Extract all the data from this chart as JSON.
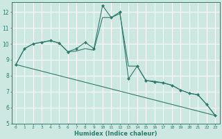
{
  "xlabel": "Humidex (Indice chaleur)",
  "background_color": "#cce8e0",
  "grid_color": "#ffffff",
  "line_color": "#2d7a6e",
  "ylim": [
    5,
    12.6
  ],
  "xlim": [
    -0.5,
    23.5
  ],
  "yticks": [
    5,
    6,
    7,
    8,
    9,
    10,
    11,
    12
  ],
  "xticks": [
    0,
    1,
    2,
    3,
    4,
    5,
    6,
    7,
    8,
    9,
    10,
    11,
    12,
    13,
    14,
    15,
    16,
    17,
    18,
    19,
    20,
    21,
    22,
    23
  ],
  "series1_x": [
    0,
    1,
    2,
    3,
    4,
    5,
    6,
    7,
    8,
    9,
    10,
    11,
    12,
    13,
    14,
    15,
    16,
    17,
    18,
    19,
    20,
    21,
    22,
    23
  ],
  "series1_y": [
    8.7,
    9.7,
    10.0,
    10.1,
    10.2,
    10.05,
    9.5,
    9.7,
    10.1,
    9.7,
    12.4,
    11.65,
    12.0,
    7.8,
    8.6,
    7.7,
    7.6,
    7.55,
    7.4,
    7.1,
    6.9,
    6.8,
    6.2,
    5.5
  ],
  "series2_x": [
    0,
    1,
    2,
    3,
    4,
    5,
    6,
    7,
    8,
    9,
    10,
    11,
    12,
    13,
    14,
    15,
    16,
    17,
    18,
    19,
    20,
    21,
    22,
    23
  ],
  "series2_y": [
    8.7,
    9.7,
    10.0,
    10.1,
    10.2,
    10.05,
    9.5,
    9.55,
    9.7,
    9.6,
    11.65,
    11.65,
    11.9,
    8.6,
    8.6,
    7.7,
    7.65,
    7.55,
    7.4,
    7.1,
    6.9,
    6.8,
    6.2,
    5.5
  ],
  "series3_x": [
    0,
    23
  ],
  "series3_y": [
    8.7,
    5.5
  ]
}
